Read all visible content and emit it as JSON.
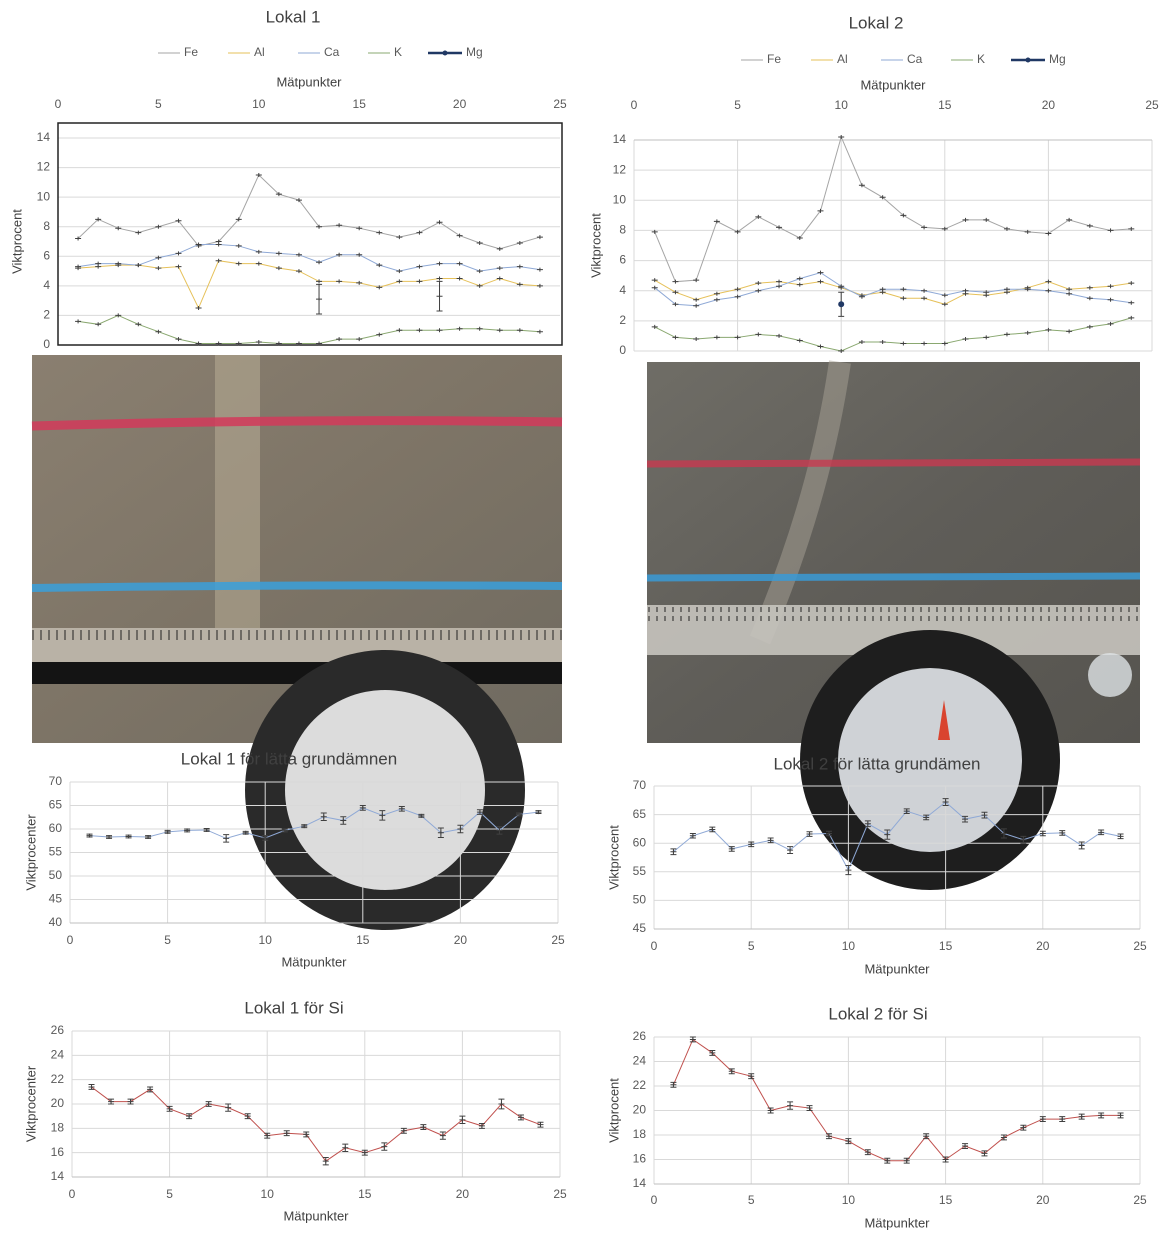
{
  "chart_data": [
    {
      "type": "line",
      "title": "Lokal 1",
      "x_label": "Mätpunkter",
      "y_label": "Viktprocent",
      "xaxis_position": "top",
      "grid": true,
      "x": [
        1,
        2,
        3,
        4,
        5,
        6,
        7,
        8,
        9,
        10,
        11,
        12,
        13,
        14,
        15,
        16,
        17,
        18,
        19,
        20,
        21,
        22,
        23,
        24
      ],
      "xlim": [
        0,
        25
      ],
      "xticks": [
        0,
        5,
        10,
        15,
        20,
        25
      ],
      "ylim": [
        0,
        14
      ],
      "yticks": [
        0,
        2,
        4,
        6,
        8,
        10,
        12,
        14
      ],
      "series": [
        {
          "name": "Fe",
          "color": "#a5a5a5",
          "values": [
            7.2,
            8.5,
            7.9,
            7.6,
            8.0,
            8.4,
            6.7,
            7.0,
            8.5,
            11.5,
            10.2,
            9.8,
            8.0,
            8.1,
            7.9,
            7.6,
            7.3,
            7.6,
            8.3,
            7.4,
            6.9,
            6.5,
            6.9,
            7.3
          ]
        },
        {
          "name": "Al",
          "color": "#e6c15a",
          "values": [
            5.2,
            5.3,
            5.4,
            5.4,
            5.2,
            5.3,
            2.5,
            5.7,
            5.5,
            5.5,
            5.2,
            5.0,
            4.3,
            4.3,
            4.2,
            3.9,
            4.3,
            4.3,
            4.5,
            4.5,
            4.0,
            4.5,
            4.1,
            4.0
          ]
        },
        {
          "name": "Ca",
          "color": "#8fa9d6",
          "values": [
            5.3,
            5.5,
            5.5,
            5.4,
            5.9,
            6.2,
            6.8,
            6.8,
            6.7,
            6.3,
            6.2,
            6.1,
            5.6,
            6.1,
            6.1,
            5.4,
            5.0,
            5.3,
            5.5,
            5.5,
            5.0,
            5.2,
            5.3,
            5.1
          ]
        },
        {
          "name": "K",
          "color": "#8aa870",
          "values": [
            1.6,
            1.4,
            2.0,
            1.4,
            0.9,
            0.4,
            0.1,
            0.1,
            0.1,
            0.2,
            0.1,
            0.1,
            0.1,
            0.4,
            0.4,
            0.7,
            1.0,
            1.0,
            1.0,
            1.1,
            1.1,
            1.0,
            1.0,
            0.9
          ]
        },
        {
          "name": "Mg",
          "color": "#203864",
          "values": [
            null,
            null,
            null,
            null,
            null,
            null,
            null,
            null,
            null,
            null,
            null,
            null,
            3.1,
            null,
            null,
            null,
            null,
            null,
            3.3,
            null,
            null,
            null,
            null,
            null
          ],
          "errors": [
            null,
            null,
            null,
            null,
            null,
            null,
            null,
            null,
            null,
            null,
            null,
            null,
            1.0,
            null,
            null,
            null,
            null,
            null,
            1.0,
            null,
            null,
            null,
            null,
            null
          ]
        }
      ]
    },
    {
      "type": "line",
      "title": "Lokal 2",
      "x_label": "Mätpunkter",
      "y_label": "Viktprocent",
      "xaxis_position": "top",
      "grid": true,
      "x": [
        1,
        2,
        3,
        4,
        5,
        6,
        7,
        8,
        9,
        10,
        11,
        12,
        13,
        14,
        15,
        16,
        17,
        18,
        19,
        20,
        21,
        22,
        23,
        24
      ],
      "xlim": [
        0,
        25
      ],
      "xticks": [
        0,
        5,
        10,
        15,
        20,
        25
      ],
      "ylim": [
        0,
        14
      ],
      "yticks": [
        0,
        2,
        4,
        6,
        8,
        10,
        12,
        14
      ],
      "series": [
        {
          "name": "Fe",
          "color": "#a5a5a5",
          "values": [
            7.9,
            4.6,
            4.7,
            8.6,
            7.9,
            8.9,
            8.2,
            7.5,
            9.3,
            14.2,
            11.0,
            10.2,
            9.0,
            8.2,
            8.1,
            8.7,
            8.7,
            8.1,
            7.9,
            7.8,
            8.7,
            8.3,
            8.0,
            8.1
          ]
        },
        {
          "name": "Al",
          "color": "#e6c15a",
          "values": [
            4.7,
            3.9,
            3.4,
            3.8,
            4.1,
            4.5,
            4.6,
            4.4,
            4.6,
            4.2,
            3.7,
            3.9,
            3.5,
            3.5,
            3.1,
            3.8,
            3.7,
            3.9,
            4.2,
            4.6,
            4.1,
            4.2,
            4.3,
            4.5
          ]
        },
        {
          "name": "Ca",
          "color": "#8fa9d6",
          "values": [
            4.2,
            3.1,
            3.0,
            3.4,
            3.6,
            4.0,
            4.3,
            4.8,
            5.2,
            4.3,
            3.6,
            4.1,
            4.1,
            4.0,
            3.7,
            4.0,
            3.9,
            4.1,
            4.1,
            4.0,
            3.8,
            3.5,
            3.4,
            3.2
          ]
        },
        {
          "name": "K",
          "color": "#8aa870",
          "values": [
            1.6,
            0.9,
            0.8,
            0.9,
            0.9,
            1.1,
            1.0,
            0.7,
            0.3,
            0.0,
            0.6,
            0.6,
            0.5,
            0.5,
            0.5,
            0.8,
            0.9,
            1.1,
            1.2,
            1.4,
            1.3,
            1.6,
            1.8,
            2.2
          ]
        },
        {
          "name": "Mg",
          "color": "#203864",
          "values": [
            null,
            null,
            null,
            null,
            null,
            null,
            null,
            null,
            null,
            3.1,
            null,
            null,
            null,
            null,
            null,
            null,
            null,
            null,
            null,
            null,
            null,
            null,
            null,
            null
          ],
          "errors": [
            null,
            null,
            null,
            null,
            null,
            null,
            null,
            null,
            null,
            0.8,
            null,
            null,
            null,
            null,
            null,
            null,
            null,
            null,
            null,
            null,
            null,
            null,
            null,
            null
          ]
        }
      ]
    },
    {
      "type": "line",
      "title": "Lokal 1 för lätta grundämnen",
      "x_label": "Mätpunkter",
      "y_label": "Viktprocenter",
      "grid": true,
      "x": [
        1,
        2,
        3,
        4,
        5,
        6,
        7,
        8,
        9,
        10,
        11,
        12,
        13,
        14,
        15,
        16,
        17,
        18,
        19,
        20,
        21,
        22,
        23,
        24
      ],
      "xlim": [
        0,
        25
      ],
      "xticks": [
        0,
        5,
        10,
        15,
        20,
        25
      ],
      "ylim": [
        40,
        70
      ],
      "yticks": [
        40,
        45,
        50,
        55,
        60,
        65,
        70
      ],
      "series": [
        {
          "color": "#8fa9d6",
          "values": [
            58.6,
            58.3,
            58.4,
            58.3,
            59.4,
            59.7,
            59.8,
            58.0,
            59.2,
            58.1,
            59.7,
            60.6,
            62.6,
            61.8,
            64.5,
            62.9,
            64.3,
            62.8,
            59.2,
            60.0,
            63.6,
            59.7,
            63.1,
            63.6
          ],
          "errors": [
            0.3,
            0.3,
            0.3,
            0.3,
            0.3,
            0.3,
            0.3,
            0.8,
            0.3,
            0.5,
            0.3,
            0.3,
            0.8,
            0.8,
            0.5,
            1.0,
            0.5,
            0.3,
            1.0,
            0.8,
            0.5,
            0.8,
            0.3,
            0.3
          ]
        }
      ]
    },
    {
      "type": "line",
      "title": "Lokal 2 för lätta grundämen",
      "x_label": "Mätpunkter",
      "y_label": "Viktprocent",
      "grid": true,
      "x": [
        1,
        2,
        3,
        4,
        5,
        6,
        7,
        8,
        9,
        10,
        11,
        12,
        13,
        14,
        15,
        16,
        17,
        18,
        19,
        20,
        21,
        22,
        23,
        24
      ],
      "xlim": [
        0,
        25
      ],
      "xticks": [
        0,
        5,
        10,
        15,
        20,
        25
      ],
      "ylim": [
        45,
        70
      ],
      "yticks": [
        45,
        50,
        55,
        60,
        65,
        70
      ],
      "series": [
        {
          "color": "#8fa9d6",
          "values": [
            58.5,
            61.3,
            62.4,
            59.0,
            59.8,
            60.5,
            58.8,
            61.6,
            61.7,
            55.3,
            63.4,
            61.5,
            65.6,
            64.5,
            67.2,
            64.2,
            64.9,
            61.7,
            60.6,
            61.7,
            61.8,
            59.6,
            61.9,
            61.2
          ],
          "errors": [
            0.5,
            0.4,
            0.4,
            0.4,
            0.4,
            0.4,
            0.6,
            0.4,
            0.4,
            0.8,
            0.5,
            0.8,
            0.4,
            0.4,
            0.6,
            0.5,
            0.5,
            0.8,
            0.6,
            0.4,
            0.4,
            0.6,
            0.4,
            0.4
          ]
        }
      ]
    },
    {
      "type": "line",
      "title": "Lokal 1 för Si",
      "x_label": "Mätpunkter",
      "y_label": "Viktprocenter",
      "grid": true,
      "x": [
        1,
        2,
        3,
        4,
        5,
        6,
        7,
        8,
        9,
        10,
        11,
        12,
        13,
        14,
        15,
        16,
        17,
        18,
        19,
        20,
        21,
        22,
        23,
        24
      ],
      "xlim": [
        0,
        25
      ],
      "xticks": [
        0,
        5,
        10,
        15,
        20,
        25
      ],
      "ylim": [
        14,
        26
      ],
      "yticks": [
        14,
        16,
        18,
        20,
        22,
        24,
        26
      ],
      "series": [
        {
          "color": "#c0504d",
          "values": [
            21.4,
            20.2,
            20.2,
            21.2,
            19.6,
            19.0,
            20.0,
            19.7,
            19.0,
            17.4,
            17.6,
            17.5,
            15.3,
            16.4,
            16.0,
            16.5,
            17.8,
            18.1,
            17.4,
            18.7,
            18.2,
            20.0,
            18.9,
            18.3
          ],
          "errors": [
            0.2,
            0.2,
            0.2,
            0.2,
            0.2,
            0.2,
            0.2,
            0.3,
            0.2,
            0.2,
            0.2,
            0.2,
            0.3,
            0.3,
            0.2,
            0.3,
            0.2,
            0.2,
            0.3,
            0.3,
            0.2,
            0.4,
            0.2,
            0.2
          ]
        }
      ]
    },
    {
      "type": "line",
      "title": "Lokal 2 för Si",
      "x_label": "Mätpunkter",
      "y_label": "Viktprocent",
      "grid": true,
      "x": [
        1,
        2,
        3,
        4,
        5,
        6,
        7,
        8,
        9,
        10,
        11,
        12,
        13,
        14,
        15,
        16,
        17,
        18,
        19,
        20,
        21,
        22,
        23,
        24
      ],
      "xlim": [
        0,
        25
      ],
      "xticks": [
        0,
        5,
        10,
        15,
        20,
        25
      ],
      "ylim": [
        14,
        26
      ],
      "yticks": [
        14,
        16,
        18,
        20,
        22,
        24,
        26
      ],
      "series": [
        {
          "color": "#c0504d",
          "values": [
            22.1,
            25.8,
            24.7,
            23.2,
            22.8,
            20.0,
            20.4,
            20.2,
            17.9,
            17.5,
            16.6,
            15.9,
            15.9,
            17.9,
            16.0,
            17.1,
            16.5,
            17.8,
            18.6,
            19.3,
            19.3,
            19.5,
            19.6,
            19.6
          ],
          "errors": [
            0.2,
            0.2,
            0.2,
            0.2,
            0.2,
            0.2,
            0.3,
            0.2,
            0.2,
            0.2,
            0.2,
            0.2,
            0.2,
            0.2,
            0.2,
            0.2,
            0.2,
            0.2,
            0.2,
            0.2,
            0.2,
            0.2,
            0.2,
            0.2
          ]
        }
      ]
    }
  ]
}
